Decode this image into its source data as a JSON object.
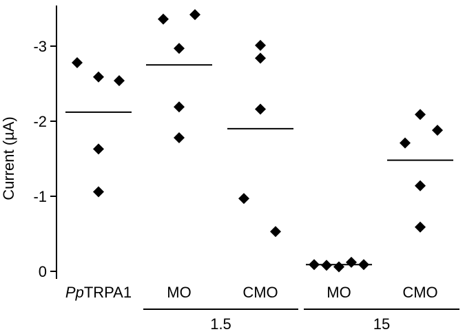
{
  "chart_data": {
    "type": "scatter",
    "title": "",
    "ylabel": "Current (µA)",
    "xlabel": "",
    "ylim": [
      0.1,
      -3.5
    ],
    "y_ticks": [
      {
        "value": 0,
        "label": "0"
      },
      {
        "value": -1,
        "label": "-1"
      },
      {
        "value": -2,
        "label": "-2"
      },
      {
        "value": -3,
        "label": "-3"
      }
    ],
    "grid": false,
    "legend": "none",
    "marker": "diamond",
    "marker_color": "#000000",
    "groups": [
      {
        "label_italic_prefix": "Pp",
        "label_rest": "TRPA1",
        "group_label": "",
        "mean": -2.12,
        "points": [
          -2.78,
          -2.59,
          -2.54,
          -1.63,
          -1.06
        ]
      },
      {
        "label_italic_prefix": "",
        "label_rest": "MO",
        "group_label": "1.5",
        "mean": -2.75,
        "points": [
          -3.36,
          -3.42,
          -2.97,
          -2.19,
          -1.78
        ]
      },
      {
        "label_italic_prefix": "",
        "label_rest": "CMO",
        "group_label": "1.5",
        "mean": -1.9,
        "points": [
          -3.01,
          -2.84,
          -2.16,
          -0.97,
          -0.53
        ]
      },
      {
        "label_italic_prefix": "",
        "label_rest": "MO",
        "group_label": "15",
        "mean": -0.09,
        "points": [
          -0.09,
          -0.08,
          -0.06,
          -0.12,
          -0.09
        ]
      },
      {
        "label_italic_prefix": "",
        "label_rest": "CMO",
        "group_label": "15",
        "mean": -1.48,
        "points": [
          -1.71,
          -2.09,
          -1.88,
          -1.14,
          -0.59
        ]
      }
    ],
    "group_brackets": [
      {
        "label": "1.5",
        "spans": [
          1,
          2
        ]
      },
      {
        "label": "15",
        "spans": [
          3,
          4
        ]
      }
    ]
  }
}
